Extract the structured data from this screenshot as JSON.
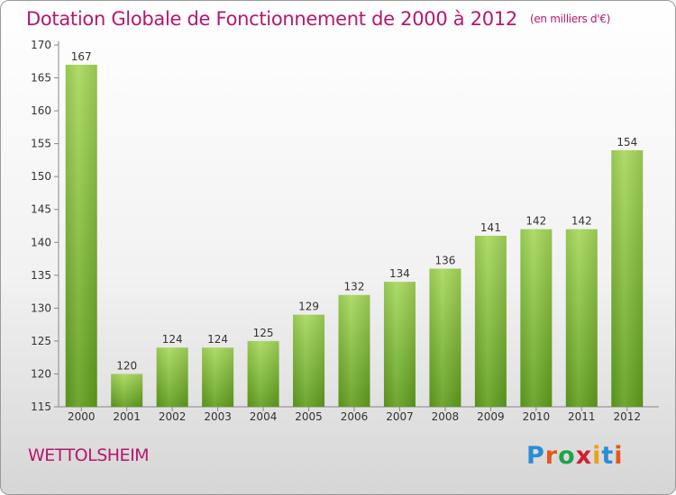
{
  "title": "Dotation Globale de Fonctionnement de 2000 à 2012",
  "unit": "(en milliers d'€)",
  "commune": "WETTOLSHEIM",
  "logo": {
    "letters": [
      "P",
      "r",
      "o",
      "x",
      "i",
      "t",
      "i"
    ],
    "colors": [
      "#2a8dd4",
      "#e0591f",
      "#1fa34a",
      "#d02030",
      "#f0a012",
      "#2a8dd4",
      "#e0591f"
    ]
  },
  "colors": {
    "title": "#b5176e",
    "bar_light": "#a6d85a",
    "bar_dark": "#5f9e1c"
  },
  "chart_data": {
    "type": "bar",
    "categories": [
      "2000",
      "2001",
      "2002",
      "2003",
      "2004",
      "2005",
      "2006",
      "2007",
      "2008",
      "2009",
      "2010",
      "2011",
      "2012"
    ],
    "values": [
      167,
      120,
      124,
      124,
      125,
      129,
      132,
      134,
      136,
      141,
      142,
      142,
      154
    ],
    "ylim": [
      115,
      170
    ],
    "yticks": [
      115,
      120,
      125,
      130,
      135,
      140,
      145,
      150,
      155,
      160,
      165,
      170
    ],
    "grid": false,
    "title": "Dotation Globale de Fonctionnement de 2000 à 2012"
  }
}
